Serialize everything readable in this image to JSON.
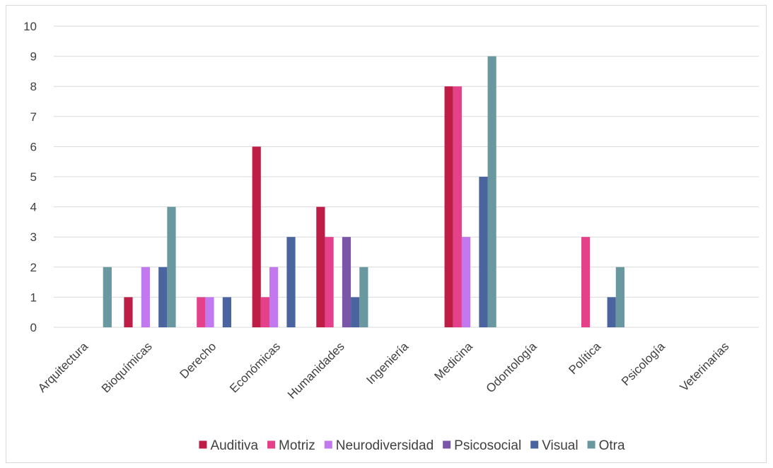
{
  "chart_data": {
    "type": "bar",
    "title": "",
    "xlabel": "",
    "ylabel": "",
    "ylim": [
      0,
      10
    ],
    "yticks": [
      0,
      1,
      2,
      3,
      4,
      5,
      6,
      7,
      8,
      9,
      10
    ],
    "grid": true,
    "legend_position": "bottom",
    "categories": [
      "Arquitectura",
      "Bioquímicas",
      "Derecho",
      "Económicas",
      "Humanidades",
      "Ingeniería",
      "Medicina",
      "Odontología",
      "Política",
      "Psicología",
      "Veterinarias"
    ],
    "series": [
      {
        "name": "Auditiva",
        "color": "#be1e45",
        "values": [
          0,
          1,
          0,
          6,
          4,
          0,
          8,
          0,
          0,
          0,
          0
        ]
      },
      {
        "name": "Motriz",
        "color": "#e4418a",
        "values": [
          0,
          0,
          1,
          1,
          3,
          0,
          8,
          0,
          3,
          0,
          0
        ]
      },
      {
        "name": "Neurodiversidad",
        "color": "#c278ee",
        "values": [
          0,
          2,
          1,
          2,
          0,
          0,
          3,
          0,
          0,
          0,
          0
        ]
      },
      {
        "name": "Psicosocial",
        "color": "#7b55a8",
        "values": [
          0,
          0,
          0,
          0,
          3,
          0,
          0,
          0,
          0,
          0,
          0
        ]
      },
      {
        "name": "Visual",
        "color": "#4a64a0",
        "values": [
          0,
          2,
          1,
          3,
          1,
          0,
          5,
          0,
          1,
          0,
          0
        ]
      },
      {
        "name": "Otra",
        "color": "#6a98a0",
        "values": [
          2,
          4,
          0,
          0,
          2,
          0,
          9,
          0,
          2,
          0,
          0
        ]
      }
    ]
  },
  "style": {
    "gridline_color": "#d9d9d9",
    "axis_color": "#d9d9d9",
    "text_color": "#404040"
  }
}
